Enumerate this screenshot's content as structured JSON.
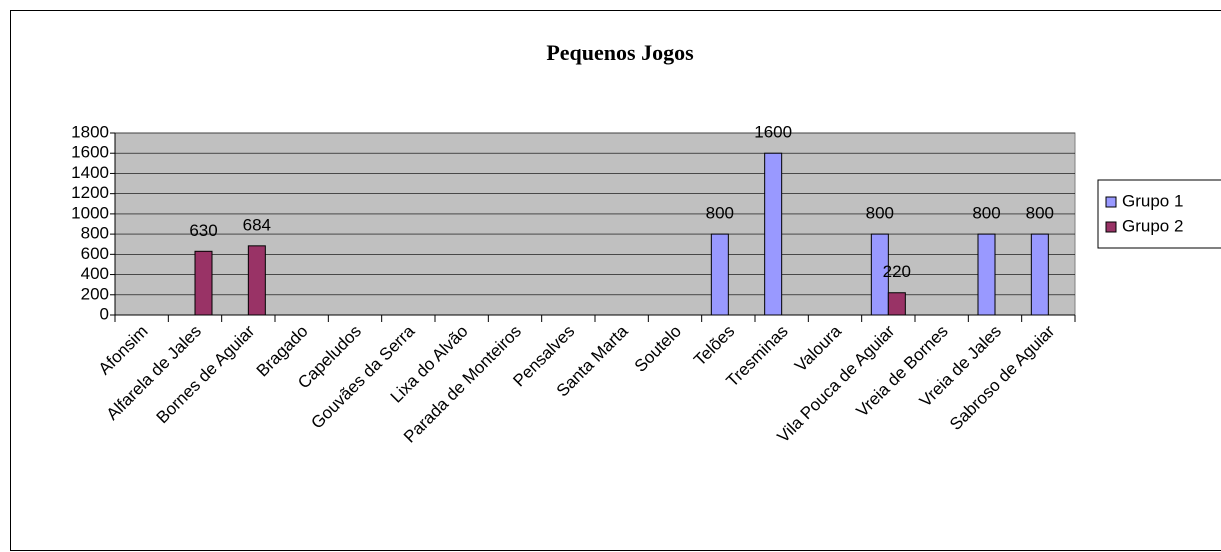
{
  "chart_data": {
    "type": "bar",
    "title": "Pequenos Jogos",
    "categories": [
      "Afonsim",
      "Alfarela de Jales",
      "Bornes de Aguiar",
      "Bragado",
      "Capeludos",
      "Gouvães da Serra",
      "Lixa do Alvão",
      "Parada de Monteiros",
      "Pensalves",
      "Santa Marta",
      "Soutelo",
      "Telões",
      "Tresminas",
      "Valoura",
      "Vila Pouca de Aguiar",
      "Vreia de Bornes",
      "Vreia de Jales",
      "Sabroso de Aguiar"
    ],
    "series": [
      {
        "name": "Grupo 1",
        "color": "#9999ff",
        "values": [
          null,
          null,
          null,
          null,
          null,
          null,
          null,
          null,
          null,
          null,
          null,
          800,
          1600,
          null,
          800,
          null,
          800,
          800
        ]
      },
      {
        "name": "Grupo 2",
        "color": "#993366",
        "values": [
          null,
          630,
          684,
          null,
          null,
          null,
          null,
          null,
          null,
          null,
          null,
          null,
          null,
          null,
          220,
          null,
          null,
          null
        ]
      }
    ],
    "ylim": [
      0,
      1800
    ],
    "yticks": [
      0,
      200,
      400,
      600,
      800,
      1000,
      1200,
      1400,
      1600,
      1800
    ],
    "grid": true,
    "legend": "right"
  }
}
